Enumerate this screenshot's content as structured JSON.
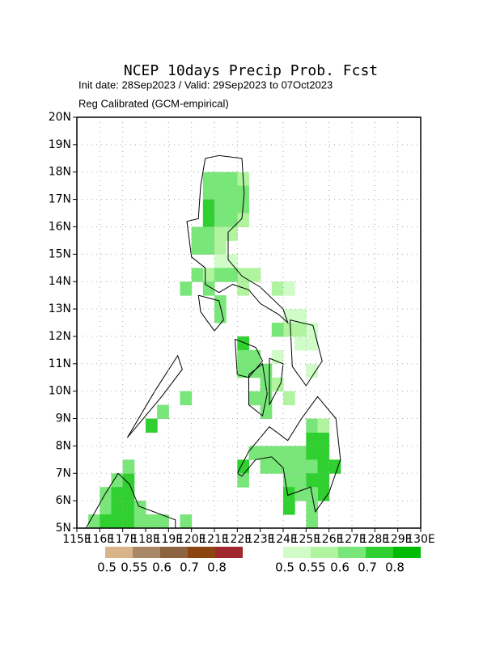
{
  "chart_data": {
    "type": "gridmap",
    "title": "NCEP 10days Precip Prob. Fcst",
    "subtitle": "Init date: 28Sep2023 / Valid: 29Sep2023 to 07Oct2023",
    "method": "Reg Calibrated (GCM-empirical)",
    "xlim": [
      115,
      130
    ],
    "ylim": [
      5,
      20
    ],
    "xticks": [
      {
        "value": 115,
        "label": "115E"
      },
      {
        "value": 116,
        "label": "116E"
      },
      {
        "value": 117,
        "label": "117E"
      },
      {
        "value": 118,
        "label": "118E"
      },
      {
        "value": 119,
        "label": "119E"
      },
      {
        "value": 120,
        "label": "120E"
      },
      {
        "value": 121,
        "label": "121E"
      },
      {
        "value": 122,
        "label": "122E"
      },
      {
        "value": 123,
        "label": "123E"
      },
      {
        "value": 124,
        "label": "124E"
      },
      {
        "value": 125,
        "label": "125E"
      },
      {
        "value": 126,
        "label": "126E"
      },
      {
        "value": 127,
        "label": "127E"
      },
      {
        "value": 128,
        "label": "128E"
      },
      {
        "value": 129,
        "label": "129E"
      },
      {
        "value": 130,
        "label": "130E"
      }
    ],
    "yticks": [
      {
        "value": 5,
        "label": "5N"
      },
      {
        "value": 6,
        "label": "6N"
      },
      {
        "value": 7,
        "label": "7N"
      },
      {
        "value": 8,
        "label": "8N"
      },
      {
        "value": 9,
        "label": "9N"
      },
      {
        "value": 10,
        "label": "10N"
      },
      {
        "value": 11,
        "label": "11N"
      },
      {
        "value": 12,
        "label": "12N"
      },
      {
        "value": 13,
        "label": "13N"
      },
      {
        "value": 14,
        "label": "14N"
      },
      {
        "value": 15,
        "label": "15N"
      },
      {
        "value": 16,
        "label": "16N"
      },
      {
        "value": 17,
        "label": "17N"
      },
      {
        "value": 18,
        "label": "18N"
      },
      {
        "value": 19,
        "label": "19N"
      },
      {
        "value": 20,
        "label": "20N"
      }
    ],
    "grid": true,
    "cell_size": 0.5,
    "legends": [
      {
        "colors": [
          "#d8b488",
          "#a88866",
          "#8c6440",
          "#8c4410",
          "#a0282c"
        ],
        "labels": [
          0.5,
          0.55,
          0.6,
          0.7,
          0.8
        ]
      },
      {
        "colors": [
          "#d0fcc8",
          "#b0f4a0",
          "#78e678",
          "#30d030",
          "#00bc00"
        ],
        "labels": [
          0.5,
          0.55,
          0.6,
          0.7,
          0.8
        ]
      }
    ],
    "cells": [
      [
        120.5,
        17.5,
        0.65
      ],
      [
        121,
        17.5,
        0.65
      ],
      [
        121.5,
        17.5,
        0.65
      ],
      [
        122,
        17.5,
        0.58
      ],
      [
        120.5,
        17,
        0.65
      ],
      [
        121,
        17,
        0.65
      ],
      [
        121.5,
        17,
        0.65
      ],
      [
        122,
        17,
        0.65
      ],
      [
        120.5,
        16.5,
        0.75
      ],
      [
        121,
        16.5,
        0.65
      ],
      [
        121.5,
        16.5,
        0.65
      ],
      [
        122,
        16.5,
        0.65
      ],
      [
        120.5,
        16,
        0.75
      ],
      [
        121,
        16,
        0.65
      ],
      [
        121.5,
        16,
        0.65
      ],
      [
        122,
        16,
        0.58
      ],
      [
        120,
        15.5,
        0.65
      ],
      [
        120.5,
        15.5,
        0.65
      ],
      [
        121,
        15.5,
        0.58
      ],
      [
        121.5,
        15.5,
        0.58
      ],
      [
        120,
        15,
        0.65
      ],
      [
        120.5,
        15,
        0.65
      ],
      [
        121,
        15,
        0.58
      ],
      [
        121,
        14.5,
        0.53
      ],
      [
        121.5,
        14.5,
        0.53
      ],
      [
        122,
        14,
        0.55
      ],
      [
        120,
        14,
        0.65
      ],
      [
        120.5,
        14,
        0.58
      ],
      [
        121,
        14,
        0.65
      ],
      [
        121.5,
        14,
        0.65
      ],
      [
        122,
        13.5,
        0.55
      ],
      [
        119.5,
        13.5,
        0.65
      ],
      [
        120.5,
        13.5,
        0.65
      ],
      [
        121,
        13,
        0.65
      ],
      [
        121,
        12.5,
        0.65
      ],
      [
        122.5,
        14,
        0.58
      ],
      [
        123.5,
        13.5,
        0.55
      ],
      [
        124,
        13.5,
        0.53
      ],
      [
        124,
        12.5,
        0.53
      ],
      [
        124.5,
        12.5,
        0.53
      ],
      [
        124,
        12,
        0.55
      ],
      [
        124.5,
        12,
        0.55
      ],
      [
        125,
        12,
        0.53
      ],
      [
        124.5,
        11.5,
        0.53
      ],
      [
        125,
        11.5,
        0.53
      ],
      [
        123.5,
        12,
        0.6
      ],
      [
        125,
        10.5,
        0.53
      ],
      [
        123.5,
        11,
        0.53
      ],
      [
        122,
        11.5,
        0.75
      ],
      [
        122,
        11,
        0.65
      ],
      [
        122.5,
        11,
        0.65
      ],
      [
        122,
        10.5,
        0.65
      ],
      [
        122.5,
        10.5,
        0.65
      ],
      [
        123,
        10.5,
        0.65
      ],
      [
        123,
        10,
        0.65
      ],
      [
        123,
        9.5,
        0.65
      ],
      [
        122.5,
        9.5,
        0.65
      ],
      [
        123,
        9,
        0.65
      ],
      [
        124,
        9.5,
        0.55
      ],
      [
        123.5,
        10,
        0.55
      ],
      [
        119.5,
        9.5,
        0.65
      ],
      [
        118.5,
        9,
        0.65
      ],
      [
        118,
        8.5,
        0.75
      ],
      [
        122.5,
        7.5,
        0.65
      ],
      [
        123,
        7.5,
        0.65
      ],
      [
        123.5,
        7.5,
        0.65
      ],
      [
        124,
        7.5,
        0.65
      ],
      [
        124.5,
        7.5,
        0.65
      ],
      [
        125,
        7.5,
        0.75
      ],
      [
        125.5,
        7.5,
        0.75
      ],
      [
        125,
        8,
        0.75
      ],
      [
        125.5,
        8,
        0.75
      ],
      [
        125,
        8.5,
        0.65
      ],
      [
        125.5,
        8.5,
        0.58
      ],
      [
        122,
        7,
        0.75
      ],
      [
        122,
        6.5,
        0.65
      ],
      [
        123,
        7,
        0.65
      ],
      [
        123.5,
        7,
        0.65
      ],
      [
        124,
        7,
        0.65
      ],
      [
        124.5,
        7,
        0.65
      ],
      [
        125,
        7,
        0.65
      ],
      [
        125.5,
        7,
        0.75
      ],
      [
        126,
        7,
        0.75
      ],
      [
        124,
        6.5,
        0.65
      ],
      [
        124.5,
        6.5,
        0.65
      ],
      [
        125,
        6.5,
        0.75
      ],
      [
        125.5,
        6.5,
        0.75
      ],
      [
        125.5,
        6,
        0.75
      ],
      [
        124,
        6,
        0.75
      ],
      [
        124.5,
        6,
        0.65
      ],
      [
        125,
        6,
        0.65
      ],
      [
        124,
        5.5,
        0.75
      ],
      [
        125,
        5.5,
        0.65
      ],
      [
        125,
        5,
        0.65
      ],
      [
        116.5,
        6.5,
        0.65
      ],
      [
        117,
        6.5,
        0.75
      ],
      [
        117,
        7,
        0.65
      ],
      [
        116,
        6,
        0.65
      ],
      [
        116.5,
        6,
        0.75
      ],
      [
        117,
        6,
        0.75
      ],
      [
        116,
        5.5,
        0.65
      ],
      [
        116.5,
        5.5,
        0.75
      ],
      [
        117,
        5.5,
        0.75
      ],
      [
        117.5,
        5.5,
        0.65
      ],
      [
        115.5,
        5,
        0.65
      ],
      [
        116,
        5,
        0.75
      ],
      [
        116.5,
        5,
        0.75
      ],
      [
        117,
        5,
        0.75
      ],
      [
        117.5,
        5,
        0.65
      ],
      [
        118,
        5,
        0.65
      ],
      [
        118.5,
        5,
        0.65
      ],
      [
        119.5,
        5,
        0.65
      ]
    ]
  }
}
